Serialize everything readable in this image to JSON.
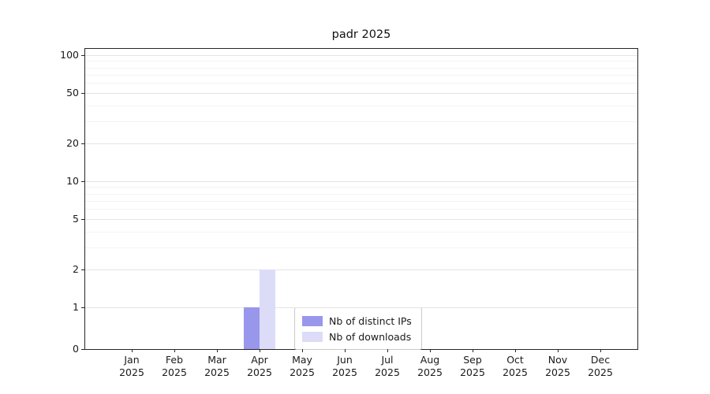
{
  "chart_data": {
    "type": "bar",
    "title": "padr 2025",
    "yscale": "symlog",
    "grid": "horizontal",
    "legend_position": "lower center",
    "ylim": [
      0,
      112
    ],
    "yticks": [
      0,
      1,
      2,
      5,
      10,
      20,
      50,
      100
    ],
    "categories": [
      "Jan",
      "Feb",
      "Mar",
      "Apr",
      "May",
      "Jun",
      "Jul",
      "Aug",
      "Sep",
      "Oct",
      "Nov",
      "Dec"
    ],
    "year": "2025",
    "series": [
      {
        "name": "Nb of distinct IPs",
        "color": "#9897ec",
        "values": [
          0,
          0,
          0,
          1,
          0,
          0,
          0,
          0,
          0,
          0,
          0,
          0
        ]
      },
      {
        "name": "Nb of downloads",
        "color": "#dcdcf9",
        "values": [
          0,
          0,
          0,
          2,
          0,
          0,
          0,
          0,
          0,
          0,
          0,
          0
        ]
      }
    ]
  }
}
